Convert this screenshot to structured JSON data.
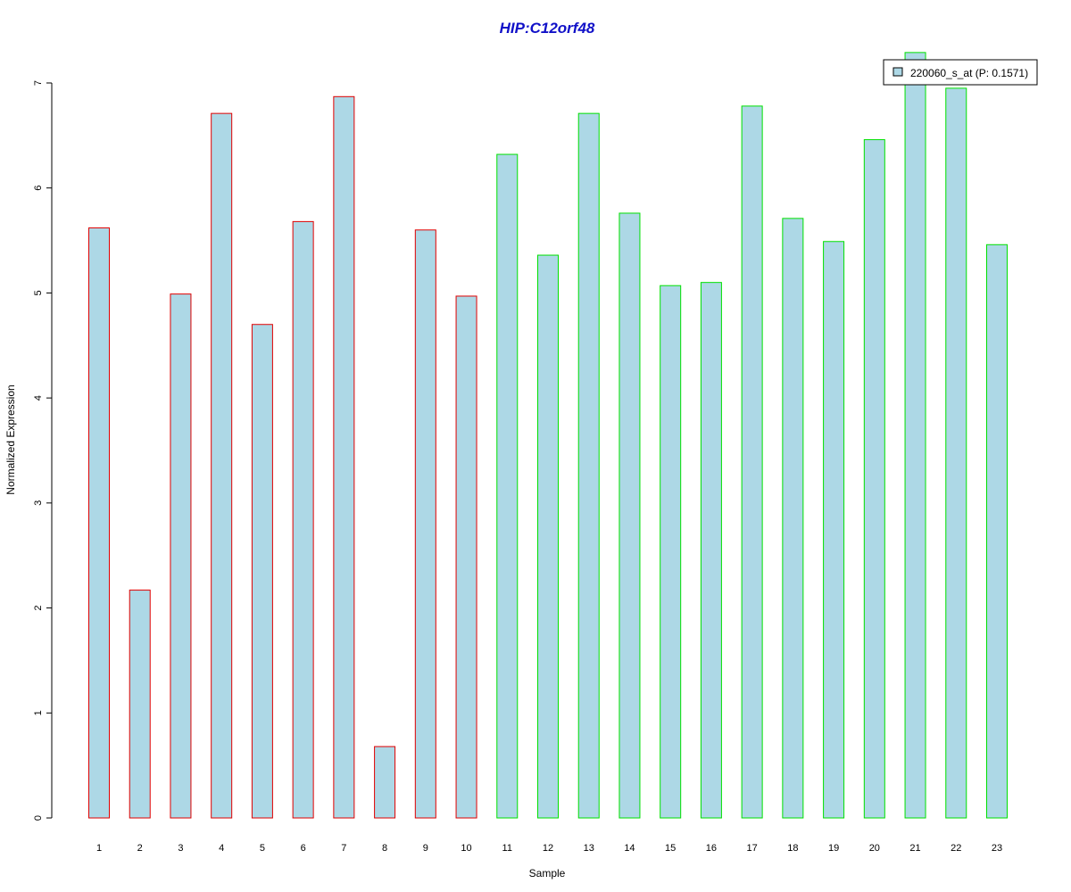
{
  "chart_data": {
    "type": "bar",
    "title": "HIP:C12orf48",
    "xlabel": "Sample",
    "ylabel": "Normalized Expression",
    "categories": [
      "1",
      "2",
      "3",
      "4",
      "5",
      "6",
      "7",
      "8",
      "9",
      "10",
      "11",
      "12",
      "13",
      "14",
      "15",
      "16",
      "17",
      "18",
      "19",
      "20",
      "21",
      "22",
      "23"
    ],
    "series": [
      {
        "name": "220060_s_at (P: 0.1571)",
        "values": [
          5.62,
          2.17,
          4.99,
          6.71,
          4.7,
          5.68,
          6.87,
          0.68,
          5.6,
          4.97,
          6.32,
          5.36,
          6.71,
          5.76,
          5.07,
          5.1,
          6.78,
          5.71,
          5.49,
          6.46,
          7.29,
          6.95,
          5.46
        ]
      }
    ],
    "group_border_colors": [
      "#e00000",
      "#e00000",
      "#e00000",
      "#e00000",
      "#e00000",
      "#e00000",
      "#e00000",
      "#e00000",
      "#e00000",
      "#e00000",
      "#00e000",
      "#00e000",
      "#00e000",
      "#00e000",
      "#00e000",
      "#00e000",
      "#00e000",
      "#00e000",
      "#00e000",
      "#00e000",
      "#00e000",
      "#00e000",
      "#00e000"
    ],
    "fill_color": "#add8e6",
    "ylim": [
      0,
      7
    ],
    "yticks": [
      0,
      1,
      2,
      3,
      4,
      5,
      6,
      7
    ],
    "grid": false,
    "legend_position": "top-right"
  }
}
